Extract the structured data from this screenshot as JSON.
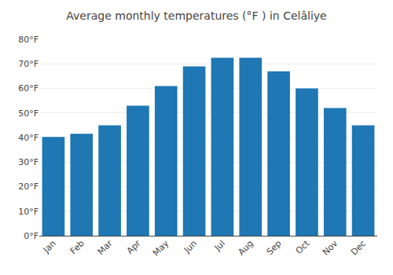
{
  "chart_data": {
    "type": "bar",
    "title": "Average monthly temperatures (°F ) in Celâliye",
    "categories": [
      "Jan",
      "Feb",
      "Mar",
      "Apr",
      "May",
      "Jun",
      "Jul",
      "Aug",
      "Sep",
      "Oct",
      "Nov",
      "Dec"
    ],
    "values": [
      40.2,
      41.5,
      45.0,
      53.0,
      61.0,
      69.0,
      72.5,
      72.5,
      67.0,
      60.0,
      52.0,
      45.0
    ],
    "ylim": [
      0,
      80
    ],
    "yticks": [
      {
        "value": 0,
        "label": "0°F"
      },
      {
        "value": 10,
        "label": "10°F"
      },
      {
        "value": 20,
        "label": "20°F"
      },
      {
        "value": 30,
        "label": "30°F"
      },
      {
        "value": 40,
        "label": "40°F"
      },
      {
        "value": 50,
        "label": "50°F"
      },
      {
        "value": 60,
        "label": "60°F"
      },
      {
        "value": 70,
        "label": "70°F"
      },
      {
        "value": 80,
        "label": "80°F"
      }
    ],
    "grid": true
  }
}
